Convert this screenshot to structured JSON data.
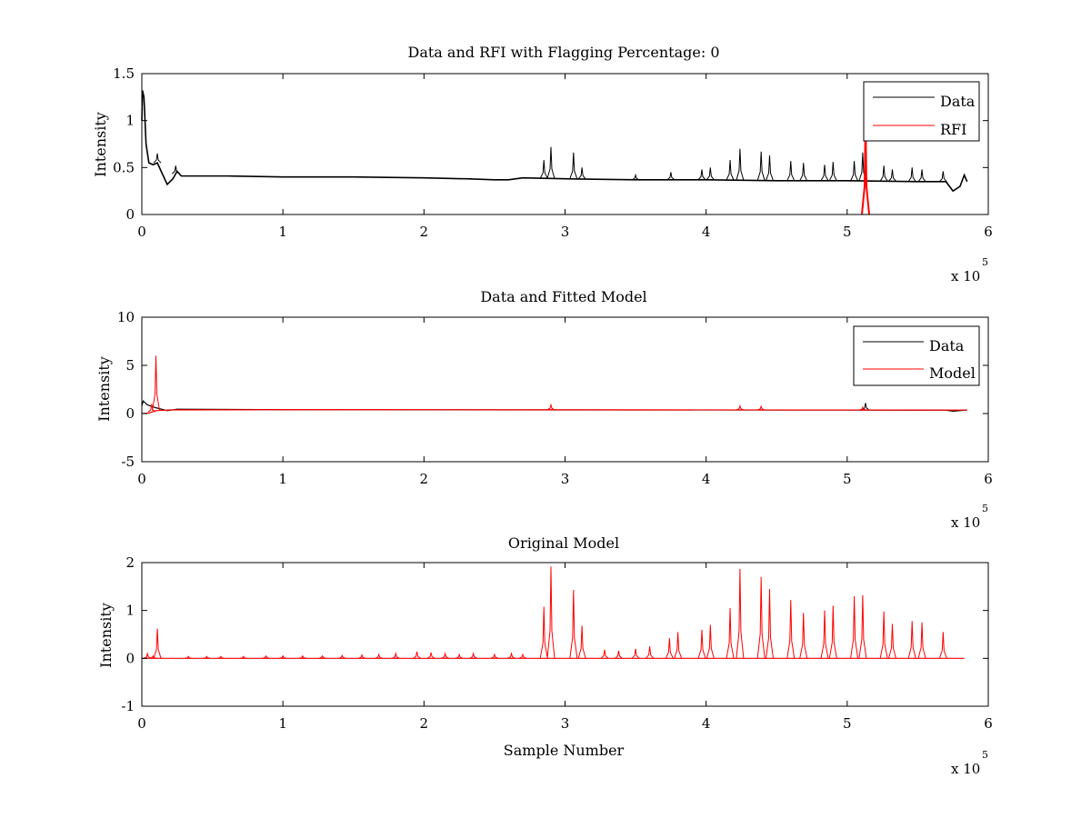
{
  "chart_data": [
    {
      "type": "line",
      "title": "Data and RFI with Flagging Percentage: 0",
      "xlabel": "",
      "ylabel": "Intensity",
      "xlim": [
        0,
        6
      ],
      "ylim": [
        0,
        1.5
      ],
      "x_exponent_label": "x 10",
      "x_exponent": "5",
      "x_ticks": [
        "0",
        "1",
        "2",
        "3",
        "4",
        "5",
        "6"
      ],
      "y_ticks": [
        "0",
        "0.5",
        "1",
        "1.5"
      ],
      "grid": false,
      "legend_position": "top-right",
      "series": [
        {
          "name": "Data",
          "color": "#000000",
          "baseline_points": [
            [
              0,
              1.0
            ],
            [
              0.005,
              1.32
            ],
            [
              0.015,
              1.25
            ],
            [
              0.03,
              0.75
            ],
            [
              0.05,
              0.55
            ],
            [
              0.08,
              0.53
            ],
            [
              0.11,
              0.55
            ],
            [
              0.14,
              0.45
            ],
            [
              0.18,
              0.32
            ],
            [
              0.22,
              0.38
            ],
            [
              0.25,
              0.46
            ],
            [
              0.28,
              0.41
            ],
            [
              0.6,
              0.41
            ],
            [
              1.0,
              0.4
            ],
            [
              1.5,
              0.4
            ],
            [
              2.0,
              0.39
            ],
            [
              2.3,
              0.38
            ],
            [
              2.5,
              0.37
            ],
            [
              2.6,
              0.37
            ],
            [
              2.7,
              0.39
            ],
            [
              3.0,
              0.38
            ],
            [
              3.5,
              0.37
            ],
            [
              4.0,
              0.37
            ],
            [
              4.5,
              0.36
            ],
            [
              5.0,
              0.36
            ],
            [
              5.5,
              0.35
            ],
            [
              5.7,
              0.35
            ],
            [
              5.75,
              0.25
            ],
            [
              5.8,
              0.3
            ],
            [
              5.83,
              0.42
            ],
            [
              5.85,
              0.35
            ]
          ],
          "spikes": [
            [
              0.11,
              0.65
            ],
            [
              0.24,
              0.52
            ],
            [
              2.85,
              0.58
            ],
            [
              2.9,
              0.72
            ],
            [
              3.06,
              0.66
            ],
            [
              3.12,
              0.5
            ],
            [
              3.5,
              0.42
            ],
            [
              3.75,
              0.45
            ],
            [
              3.97,
              0.48
            ],
            [
              4.03,
              0.5
            ],
            [
              4.17,
              0.58
            ],
            [
              4.24,
              0.7
            ],
            [
              4.39,
              0.67
            ],
            [
              4.45,
              0.63
            ],
            [
              4.6,
              0.57
            ],
            [
              4.69,
              0.55
            ],
            [
              4.84,
              0.53
            ],
            [
              4.9,
              0.56
            ],
            [
              5.05,
              0.57
            ],
            [
              5.11,
              0.66
            ],
            [
              5.26,
              0.52
            ],
            [
              5.32,
              0.48
            ],
            [
              5.46,
              0.5
            ],
            [
              5.53,
              0.48
            ],
            [
              5.68,
              0.46
            ]
          ]
        },
        {
          "name": "RFI",
          "color": "#ff0000",
          "spikes": [
            [
              5.13,
              1.0
            ]
          ]
        }
      ]
    },
    {
      "type": "line",
      "title": "Data and Fitted Model",
      "xlabel": "",
      "ylabel": "Intensity",
      "xlim": [
        0,
        6
      ],
      "ylim": [
        -5,
        10
      ],
      "x_exponent_label": "x 10",
      "x_exponent": "5",
      "x_ticks": [
        "0",
        "1",
        "2",
        "3",
        "4",
        "5",
        "6"
      ],
      "y_ticks": [
        "-5",
        "0",
        "5",
        "10"
      ],
      "grid": false,
      "legend_position": "top-right",
      "series": [
        {
          "name": "Data",
          "color": "#000000",
          "baseline_points": [
            [
              0,
              0.8
            ],
            [
              0.01,
              1.3
            ],
            [
              0.04,
              0.9
            ],
            [
              0.1,
              0.6
            ],
            [
              0.18,
              0.3
            ],
            [
              0.25,
              0.45
            ],
            [
              1.0,
              0.4
            ],
            [
              3.0,
              0.38
            ],
            [
              5.0,
              0.36
            ],
            [
              5.7,
              0.35
            ],
            [
              5.75,
              0.25
            ],
            [
              5.85,
              0.38
            ]
          ],
          "spikes": [
            [
              5.13,
              1.1
            ]
          ]
        },
        {
          "name": "Model",
          "color": "#ff0000",
          "baseline_points": [
            [
              0,
              0.0
            ],
            [
              0.05,
              0.05
            ],
            [
              0.1,
              0.3
            ],
            [
              0.2,
              0.38
            ],
            [
              1.0,
              0.4
            ],
            [
              3.0,
              0.39
            ],
            [
              5.0,
              0.37
            ],
            [
              5.85,
              0.36
            ]
          ],
          "spikes": [
            [
              0.1,
              6.0
            ],
            [
              0.07,
              1.0
            ],
            [
              2.9,
              0.9
            ],
            [
              4.24,
              0.8
            ],
            [
              4.39,
              0.75
            ],
            [
              5.11,
              0.65
            ]
          ]
        }
      ]
    },
    {
      "type": "line",
      "title": "Original Model",
      "xlabel": "Sample Number",
      "ylabel": "Intensity",
      "xlim": [
        0,
        6
      ],
      "ylim": [
        -1,
        2
      ],
      "x_exponent_label": "x 10",
      "x_exponent": "5",
      "x_ticks": [
        "0",
        "1",
        "2",
        "3",
        "4",
        "5",
        "6"
      ],
      "y_ticks": [
        "-1",
        "0",
        "1",
        "2"
      ],
      "grid": false,
      "series": [
        {
          "color": "#ff0000",
          "baseline": 0,
          "x_range": [
            0,
            5.83
          ],
          "spikes": [
            [
              0.04,
              0.1
            ],
            [
              0.08,
              0.05
            ],
            [
              0.11,
              0.62
            ],
            [
              0.33,
              0.04
            ],
            [
              0.46,
              0.04
            ],
            [
              0.56,
              0.04
            ],
            [
              0.72,
              0.04
            ],
            [
              0.88,
              0.05
            ],
            [
              1.0,
              0.05
            ],
            [
              1.14,
              0.05
            ],
            [
              1.28,
              0.05
            ],
            [
              1.42,
              0.06
            ],
            [
              1.56,
              0.07
            ],
            [
              1.68,
              0.08
            ],
            [
              1.8,
              0.1
            ],
            [
              1.95,
              0.14
            ],
            [
              2.05,
              0.12
            ],
            [
              2.15,
              0.1
            ],
            [
              2.25,
              0.08
            ],
            [
              2.35,
              0.1
            ],
            [
              2.5,
              0.08
            ],
            [
              2.62,
              0.1
            ],
            [
              2.7,
              0.08
            ],
            [
              2.85,
              1.08
            ],
            [
              2.9,
              1.92
            ],
            [
              3.06,
              1.43
            ],
            [
              3.12,
              0.68
            ],
            [
              3.28,
              0.18
            ],
            [
              3.38,
              0.16
            ],
            [
              3.5,
              0.2
            ],
            [
              3.6,
              0.25
            ],
            [
              3.74,
              0.42
            ],
            [
              3.8,
              0.55
            ],
            [
              3.97,
              0.6
            ],
            [
              4.03,
              0.7
            ],
            [
              4.17,
              1.05
            ],
            [
              4.24,
              1.87
            ],
            [
              4.39,
              1.7
            ],
            [
              4.45,
              1.45
            ],
            [
              4.6,
              1.22
            ],
            [
              4.69,
              0.95
            ],
            [
              4.84,
              1.0
            ],
            [
              4.9,
              1.1
            ],
            [
              5.05,
              1.3
            ],
            [
              5.11,
              1.32
            ],
            [
              5.26,
              0.98
            ],
            [
              5.32,
              0.72
            ],
            [
              5.46,
              0.78
            ],
            [
              5.53,
              0.75
            ],
            [
              5.68,
              0.55
            ]
          ]
        }
      ]
    }
  ]
}
